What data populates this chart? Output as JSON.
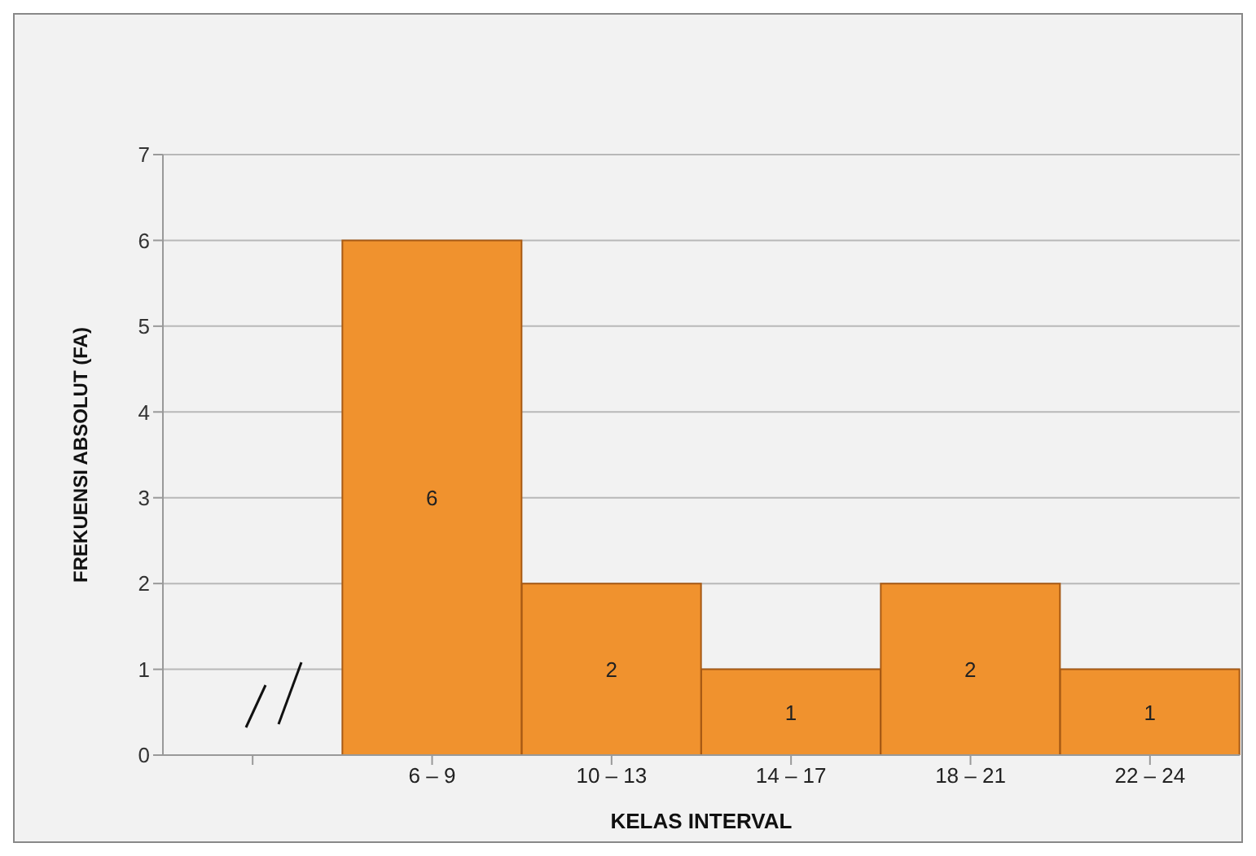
{
  "chart_data": {
    "type": "bar",
    "xlabel": "KELAS INTERVAL",
    "ylabel": "FREKUENSI ABSOLUT (FA)",
    "categories": [
      null,
      "6 – 9",
      "10 – 13",
      "14 – 17",
      "18 – 21",
      "22 – 24"
    ],
    "values": [
      null,
      6,
      2,
      1,
      2,
      1
    ],
    "color": "#f0922e",
    "ylim": [
      0,
      7
    ],
    "yticks": [
      0,
      1,
      2,
      3,
      4,
      5,
      6,
      7
    ],
    "grid": "y",
    "data_labels": true
  }
}
